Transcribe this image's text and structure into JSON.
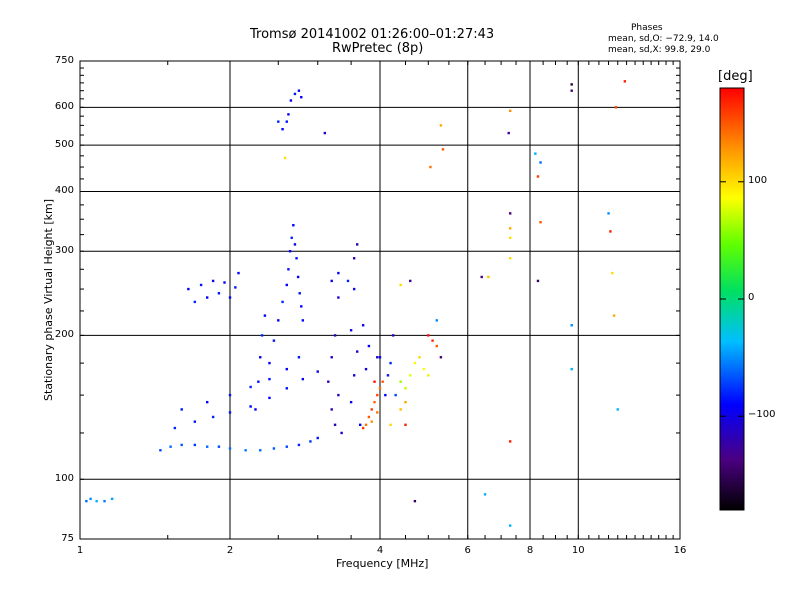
{
  "header": {
    "title": "Tromsø 20141002 01:26:00–01:27:43",
    "subtitle": "RwPretec (8p)",
    "phases_title": "Phases",
    "phases_o": "mean, sd,O: −72.9, 14.0",
    "phases_x": "mean, sd,X:  99.8, 29.0"
  },
  "colorbar": {
    "label": "[deg]",
    "ticks": [
      "100",
      "0",
      "−100"
    ],
    "tick_values": [
      100,
      0,
      -100
    ],
    "range": [
      -180,
      180
    ]
  },
  "chart_data": {
    "type": "scatter",
    "xlabel": "Frequency [MHz]",
    "ylabel": "Stationary phase Virtual Height [km]",
    "x_scale": "log",
    "y_scale": "log",
    "xlim": [
      1,
      16
    ],
    "ylim": [
      75,
      750
    ],
    "x_ticks": [
      1,
      2,
      4,
      6,
      8,
      10,
      16
    ],
    "x_tick_labels": [
      "1",
      "2",
      "4",
      "6",
      "8",
      "10",
      "16"
    ],
    "y_ticks": [
      75,
      100,
      200,
      300,
      400,
      500,
      600,
      750
    ],
    "y_tick_labels": [
      "75",
      "100",
      "200",
      "300",
      "400",
      "500",
      "600",
      "750"
    ],
    "grid": true,
    "series": [
      {
        "values": [
          [
            1.03,
            90,
            -60
          ],
          [
            1.05,
            91,
            -50
          ],
          [
            1.08,
            90,
            -40
          ],
          [
            1.12,
            90,
            -55
          ],
          [
            1.16,
            91,
            -45
          ],
          [
            1.45,
            115,
            -70
          ],
          [
            1.52,
            117,
            -60
          ],
          [
            1.6,
            118,
            -65
          ],
          [
            1.7,
            118,
            -75
          ],
          [
            1.8,
            117,
            -60
          ],
          [
            1.9,
            117,
            -70
          ],
          [
            2.0,
            116,
            -60
          ],
          [
            2.15,
            115,
            -55
          ],
          [
            2.3,
            115,
            -60
          ],
          [
            2.45,
            116,
            -65
          ],
          [
            2.6,
            117,
            -70
          ],
          [
            2.75,
            118,
            -80
          ],
          [
            2.9,
            120,
            -75
          ],
          [
            3.0,
            122,
            -85
          ],
          [
            1.55,
            128,
            -80
          ],
          [
            1.7,
            132,
            -85
          ],
          [
            1.85,
            135,
            -80
          ],
          [
            2.0,
            138,
            -85
          ],
          [
            2.2,
            142,
            -90
          ],
          [
            2.4,
            148,
            -90
          ],
          [
            2.6,
            155,
            -85
          ],
          [
            2.8,
            162,
            -95
          ],
          [
            3.0,
            168,
            -100
          ],
          [
            1.6,
            140,
            -85
          ],
          [
            1.8,
            145,
            -90
          ],
          [
            2.0,
            150,
            -85
          ],
          [
            2.2,
            156,
            -80
          ],
          [
            2.4,
            162,
            -85
          ],
          [
            2.6,
            170,
            -90
          ],
          [
            2.75,
            180,
            -85
          ],
          [
            1.65,
            250,
            -90
          ],
          [
            1.75,
            255,
            -85
          ],
          [
            1.85,
            260,
            -90
          ],
          [
            1.95,
            258,
            -95
          ],
          [
            2.05,
            252,
            -85
          ],
          [
            1.7,
            235,
            -80
          ],
          [
            1.8,
            240,
            -90
          ],
          [
            1.9,
            245,
            -85
          ],
          [
            2.0,
            240,
            -88
          ],
          [
            2.08,
            270,
            -90
          ],
          [
            2.25,
            140,
            -90
          ],
          [
            2.28,
            160,
            -85
          ],
          [
            2.3,
            180,
            -90
          ],
          [
            2.32,
            200,
            -80
          ],
          [
            2.35,
            220,
            -90
          ],
          [
            2.4,
            175,
            -95
          ],
          [
            2.45,
            195,
            -85
          ],
          [
            2.5,
            215,
            -90
          ],
          [
            2.55,
            235,
            -80
          ],
          [
            2.6,
            255,
            -90
          ],
          [
            2.62,
            275,
            -85
          ],
          [
            2.64,
            300,
            -90
          ],
          [
            2.66,
            320,
            -80
          ],
          [
            2.68,
            340,
            -90
          ],
          [
            2.7,
            310,
            -95
          ],
          [
            2.72,
            290,
            -85
          ],
          [
            2.74,
            265,
            -90
          ],
          [
            2.76,
            245,
            -85
          ],
          [
            2.78,
            230,
            -90
          ],
          [
            2.8,
            215,
            -88
          ],
          [
            2.55,
            540,
            -90
          ],
          [
            2.6,
            560,
            -85
          ],
          [
            2.62,
            580,
            -95
          ],
          [
            2.65,
            620,
            -90
          ],
          [
            2.7,
            640,
            -85
          ],
          [
            2.75,
            650,
            -90
          ],
          [
            2.78,
            630,
            -95
          ],
          [
            2.5,
            560,
            -80
          ],
          [
            2.58,
            470,
            100
          ],
          [
            3.1,
            530,
            -110
          ],
          [
            3.2,
            180,
            -110
          ],
          [
            3.25,
            200,
            -115
          ],
          [
            3.15,
            160,
            -120
          ],
          [
            3.3,
            150,
            -115
          ],
          [
            3.2,
            140,
            -120
          ],
          [
            3.25,
            130,
            -118
          ],
          [
            3.35,
            125,
            -110
          ],
          [
            3.3,
            240,
            -105
          ],
          [
            3.2,
            260,
            -100
          ],
          [
            3.3,
            270,
            -95
          ],
          [
            3.5,
            145,
            -100
          ],
          [
            3.55,
            165,
            -105
          ],
          [
            3.6,
            185,
            -110
          ],
          [
            3.5,
            205,
            -100
          ],
          [
            3.65,
            130,
            -95
          ],
          [
            3.55,
            290,
            -120
          ],
          [
            3.6,
            310,
            -115
          ],
          [
            3.45,
            260,
            -80
          ],
          [
            3.55,
            250,
            -100
          ],
          [
            3.75,
            130,
            140
          ],
          [
            3.8,
            135,
            150
          ],
          [
            3.85,
            140,
            160
          ],
          [
            3.9,
            145,
            145
          ],
          [
            3.95,
            150,
            155
          ],
          [
            4.0,
            155,
            140
          ],
          [
            4.05,
            160,
            150
          ],
          [
            3.7,
            128,
            160
          ],
          [
            3.85,
            132,
            130
          ],
          [
            3.95,
            138,
            140
          ],
          [
            3.75,
            170,
            -100
          ],
          [
            3.8,
            190,
            -90
          ],
          [
            3.7,
            210,
            -95
          ],
          [
            3.9,
            160,
            175
          ],
          [
            3.95,
            180,
            -110
          ],
          [
            4.1,
            150,
            -90
          ],
          [
            4.15,
            165,
            -85
          ],
          [
            4.2,
            175,
            -80
          ],
          [
            4.0,
            180,
            -95
          ],
          [
            4.3,
            150,
            -70
          ],
          [
            4.4,
            160,
            60
          ],
          [
            4.5,
            155,
            70
          ],
          [
            4.6,
            165,
            80
          ],
          [
            4.7,
            175,
            90
          ],
          [
            4.8,
            180,
            100
          ],
          [
            4.9,
            170,
            85
          ],
          [
            5.0,
            165,
            95
          ],
          [
            4.4,
            140,
            110
          ],
          [
            4.5,
            145,
            120
          ],
          [
            4.25,
            200,
            -110
          ],
          [
            4.2,
            130,
            100
          ],
          [
            4.5,
            130,
            170
          ],
          [
            4.6,
            260,
            -130
          ],
          [
            4.4,
            255,
            100
          ],
          [
            5.0,
            200,
            175
          ],
          [
            5.1,
            195,
            165
          ],
          [
            5.2,
            190,
            150
          ],
          [
            5.3,
            180,
            -140
          ],
          [
            5.2,
            215,
            -50
          ],
          [
            4.7,
            90,
            -150
          ],
          [
            5.05,
            450,
            140
          ],
          [
            5.3,
            550,
            120
          ],
          [
            5.35,
            490,
            150
          ],
          [
            6.4,
            265,
            -140
          ],
          [
            6.6,
            265,
            110
          ],
          [
            6.5,
            93,
            -40
          ],
          [
            7.3,
            360,
            -140
          ],
          [
            7.3,
            335,
            120
          ],
          [
            7.3,
            320,
            100
          ],
          [
            7.3,
            290,
            100
          ],
          [
            7.3,
            590,
            130
          ],
          [
            7.25,
            530,
            -130
          ],
          [
            7.3,
            120,
            170
          ],
          [
            7.3,
            80,
            -40
          ],
          [
            8.2,
            480,
            -40
          ],
          [
            8.4,
            460,
            -60
          ],
          [
            8.3,
            430,
            160
          ],
          [
            8.4,
            345,
            150
          ],
          [
            8.3,
            260,
            -150
          ],
          [
            9.7,
            670,
            -160
          ],
          [
            9.7,
            650,
            -140
          ],
          [
            9.7,
            210,
            -50
          ],
          [
            9.7,
            170,
            -40
          ],
          [
            11.5,
            360,
            -50
          ],
          [
            11.6,
            330,
            170
          ],
          [
            11.7,
            270,
            100
          ],
          [
            11.8,
            220,
            120
          ],
          [
            12.0,
            140,
            -40
          ],
          [
            11.9,
            600,
            160
          ],
          [
            12.4,
            680,
            170
          ]
        ]
      }
    ]
  }
}
